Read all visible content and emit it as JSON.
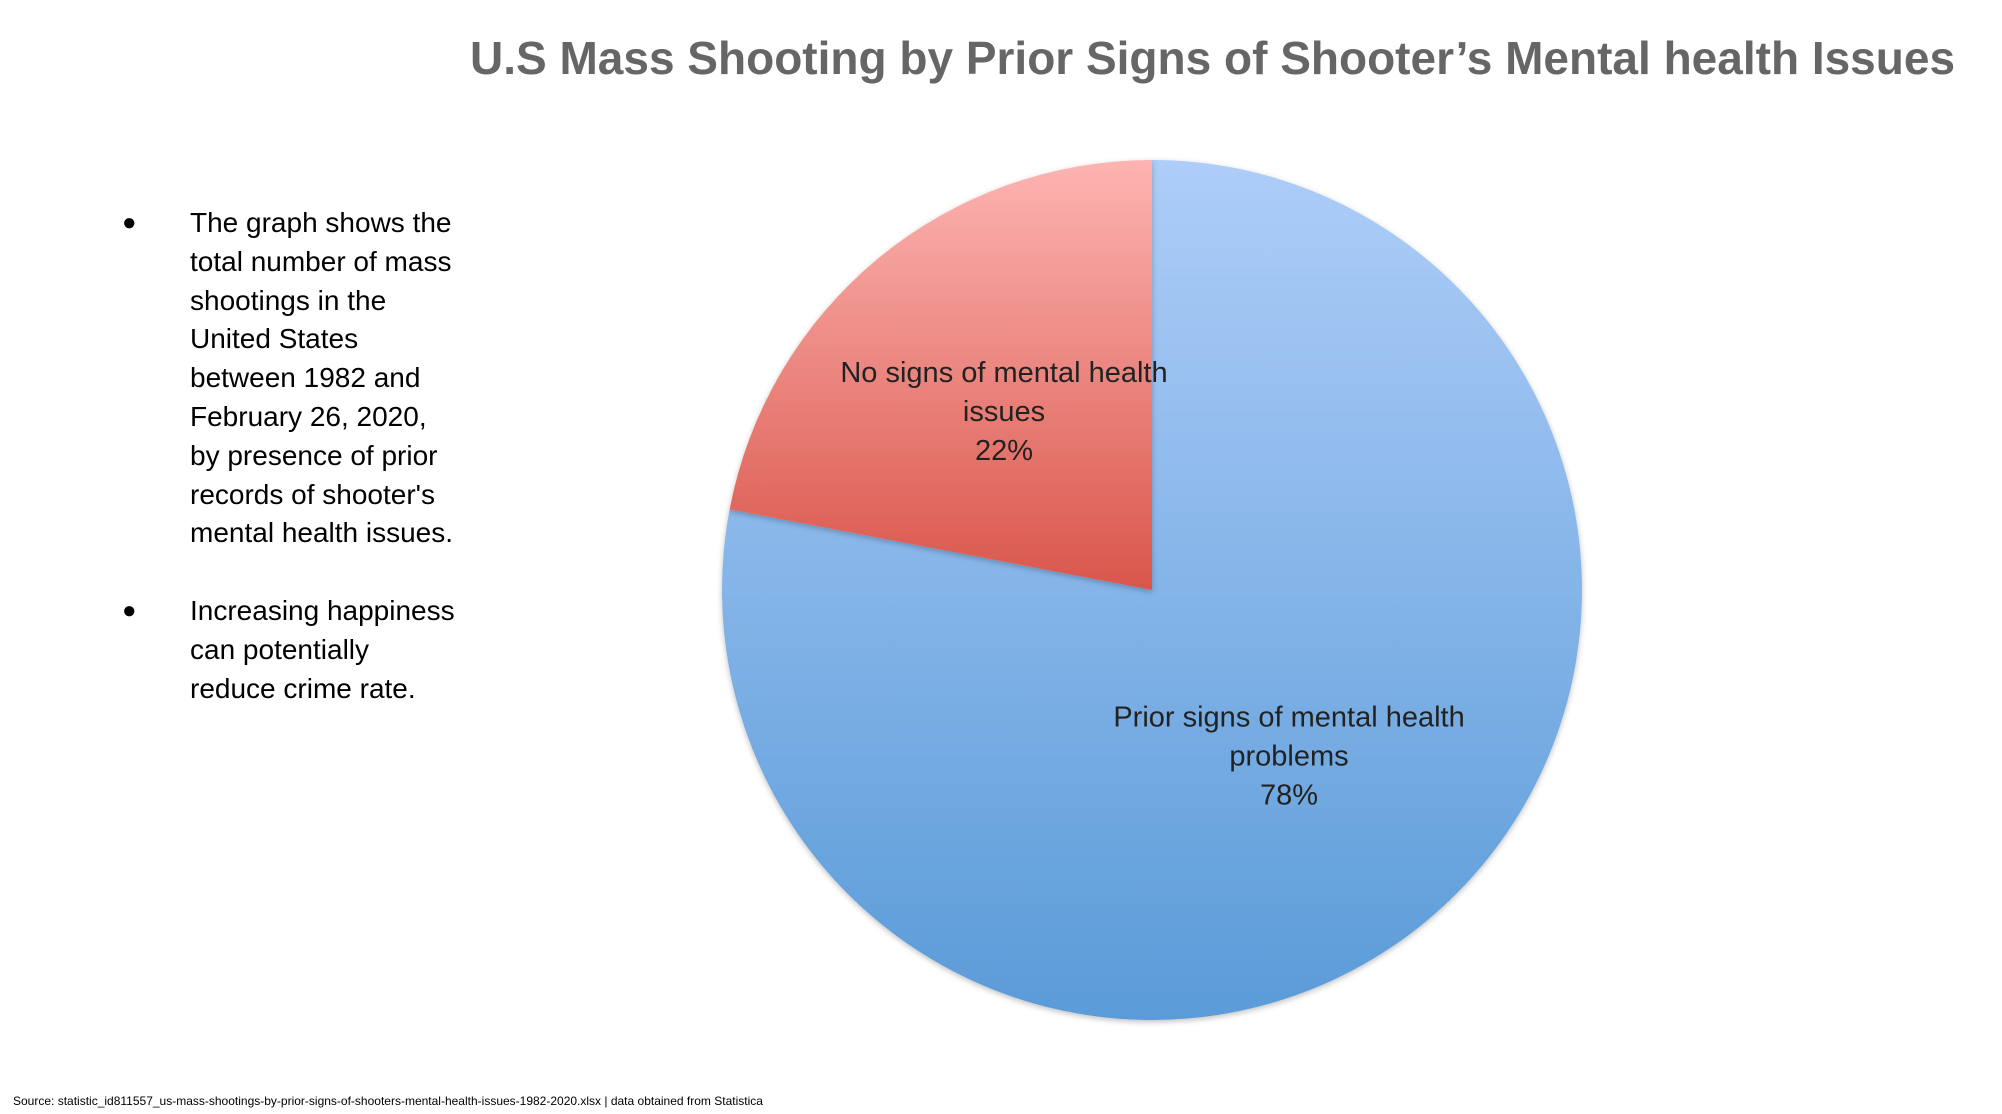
{
  "slide": {
    "title": "U.S Mass Shooting by Prior Signs of Shooter’s Mental health Issues",
    "bullets": [
      "The graph shows the total number of mass shootings in the United States between 1982 and February 26, 2020, by presence of prior records of shooter's mental health issues.",
      "Increasing happiness can potentially reduce crime rate."
    ],
    "bullet_symbol": "●",
    "source": "Source: statistic_id811557_us-mass-shootings-by-prior-signs-of-shooters-mental-health-issues-1982-2020.xlsx | data obtained from Statistica"
  },
  "chart_data": {
    "type": "pie",
    "title": "",
    "slices": [
      {
        "label_lines": [
          "Prior signs of mental health",
          "problems"
        ],
        "value": 78,
        "value_label": "78%",
        "color_top": "#aecdf8",
        "color_bottom": "#5a9bd8"
      },
      {
        "label_lines": [
          "No signs of mental health",
          "issues"
        ],
        "value": 22,
        "value_label": "22%",
        "color_top": "#fdb4b2",
        "color_bottom": "#d9564b"
      }
    ],
    "start_angle_deg": 0,
    "direction": "clockwise",
    "legend": "none",
    "labels": "inside"
  }
}
